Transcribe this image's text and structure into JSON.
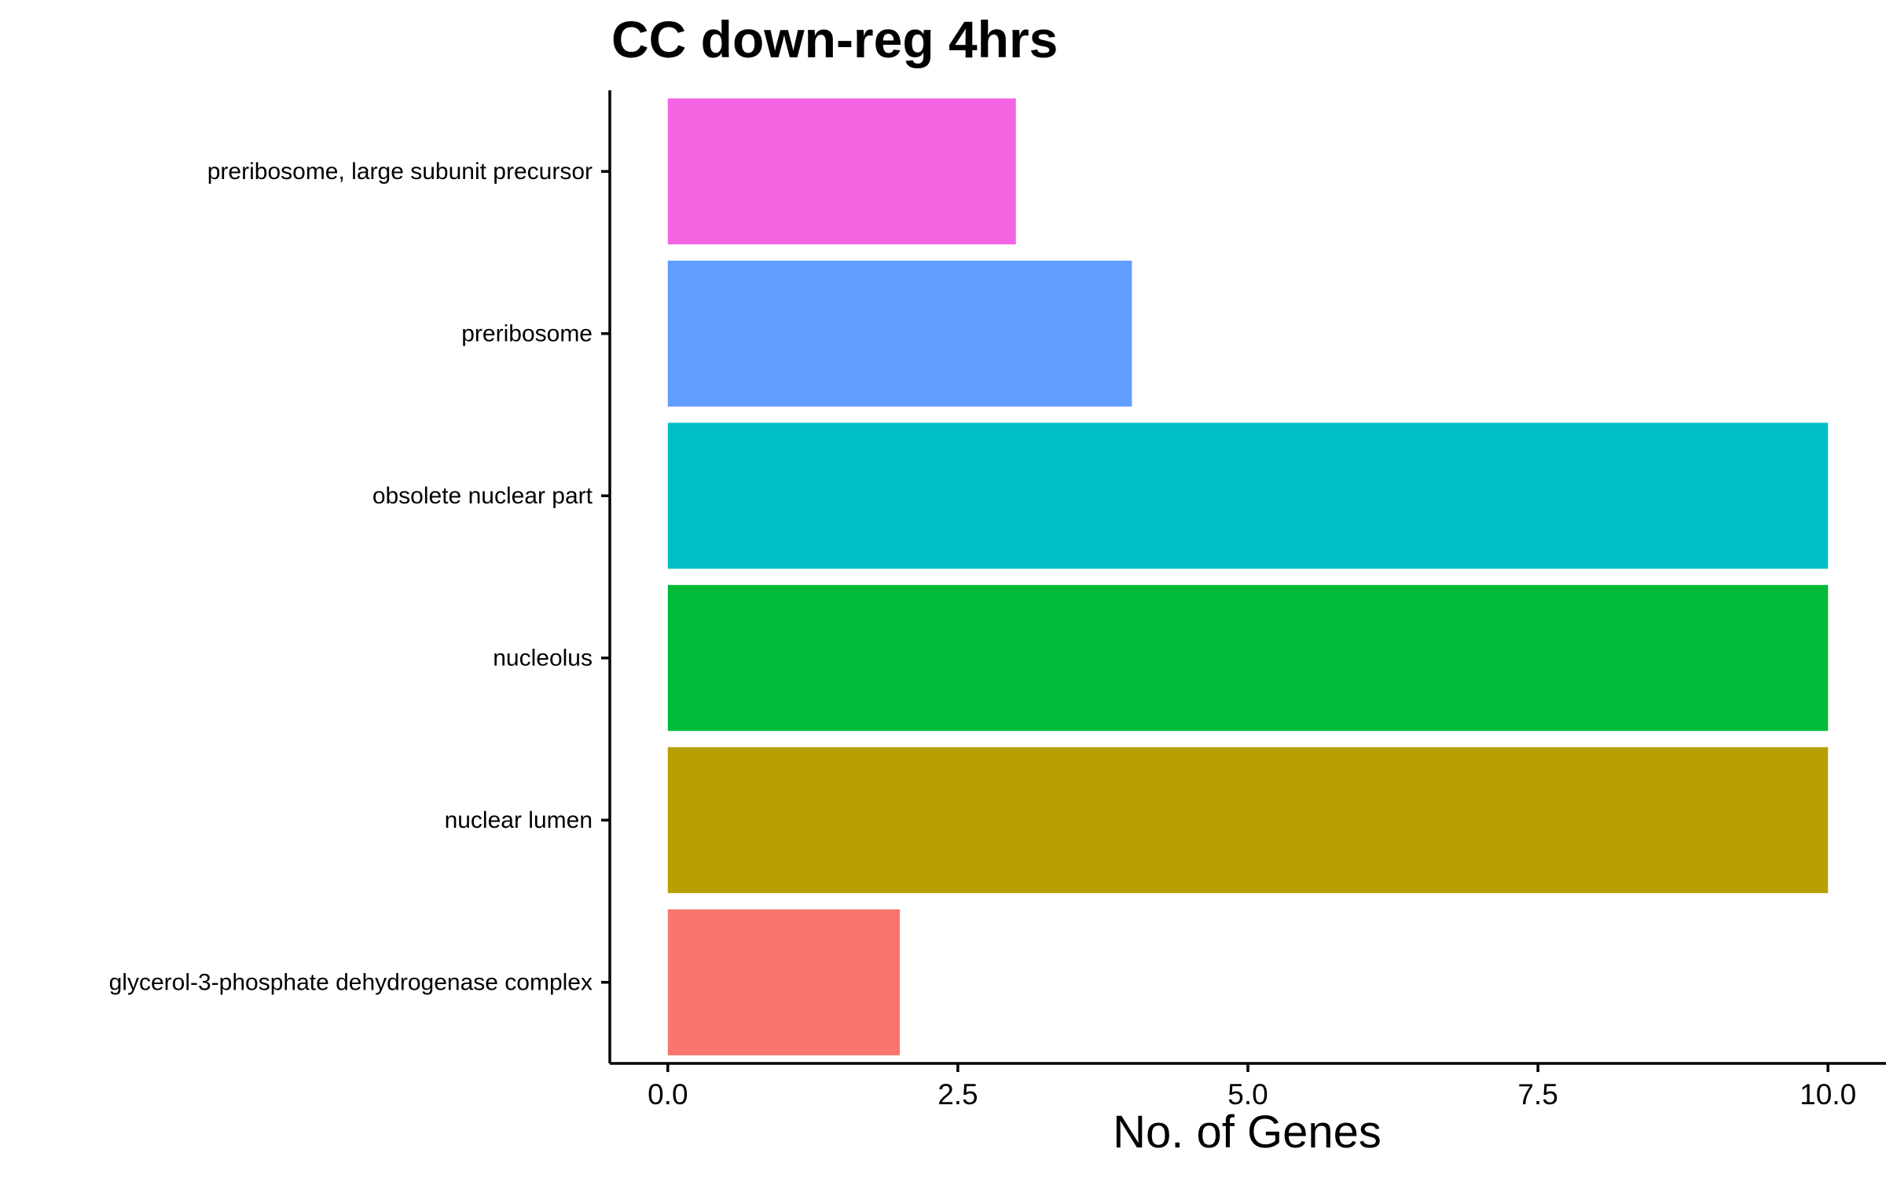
{
  "chart_data": {
    "type": "bar",
    "orientation": "horizontal",
    "title": "CC down-reg 4hrs",
    "xlabel": "No. of Genes",
    "ylabel": "",
    "categories": [
      "glycerol-3-phosphate dehydrogenase complex",
      "nuclear lumen",
      "nucleolus",
      "obsolete nuclear part",
      "preribosome",
      "preribosome, large subunit precursor"
    ],
    "values": [
      2,
      10,
      10,
      10,
      4,
      3
    ],
    "colors": [
      "#F8766D",
      "#B79F00",
      "#00BA38",
      "#00BFC4",
      "#619CFF",
      "#F564E3"
    ],
    "xlim": [
      -0.5,
      10.5
    ],
    "x_ticks": [
      "0.0",
      "2.5",
      "5.0",
      "7.5",
      "10.0"
    ],
    "x_tick_values": [
      0,
      2.5,
      5,
      7.5,
      10
    ],
    "grid": false,
    "legend": "none"
  }
}
